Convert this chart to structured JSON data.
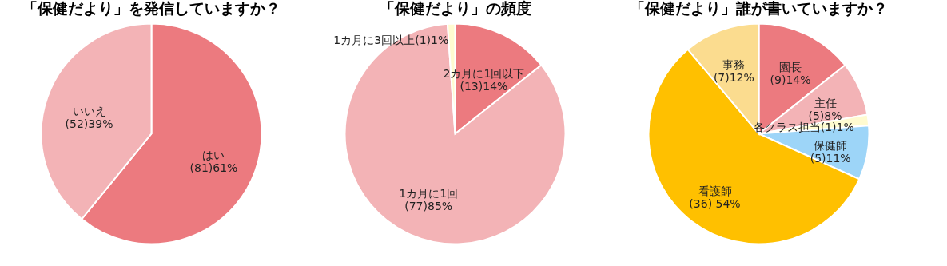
{
  "chart_data": [
    {
      "type": "pie",
      "title": "「保健だより」を発信していますか？",
      "categories": [
        "はい",
        "いいえ"
      ],
      "values": [
        81,
        52
      ],
      "value_labels": [
        "(81)61%",
        "(52)39%"
      ],
      "colors": [
        "#ec7a7f",
        "#f3b3b6"
      ]
    },
    {
      "type": "pie",
      "title": "「保健だより」の頻度",
      "categories": [
        "2カ月に1回以下",
        "1カ月に1回",
        "1カ月に3回以上"
      ],
      "values": [
        13,
        77,
        1
      ],
      "value_labels": [
        "(13)14%",
        "(77)85%",
        "(1)1%"
      ],
      "colors": [
        "#ec7a7f",
        "#f3b3b6",
        "#fffbd0"
      ]
    },
    {
      "type": "pie",
      "title": "「保健だより」誰が書いていますか？",
      "categories": [
        "園長",
        "主任",
        "各クラス担当",
        "保健師",
        "看護師",
        "事務"
      ],
      "values": [
        9,
        5,
        1,
        5,
        36,
        7
      ],
      "value_labels": [
        "(9)14%",
        "(5)8%",
        "(1)1%",
        "(5)11%",
        "(36) 54%",
        "(7)12%"
      ],
      "colors": [
        "#ec7a7f",
        "#f3b3b6",
        "#fffbd0",
        "#9dd5f8",
        "#ffc000",
        "#fbdc8f"
      ]
    }
  ]
}
